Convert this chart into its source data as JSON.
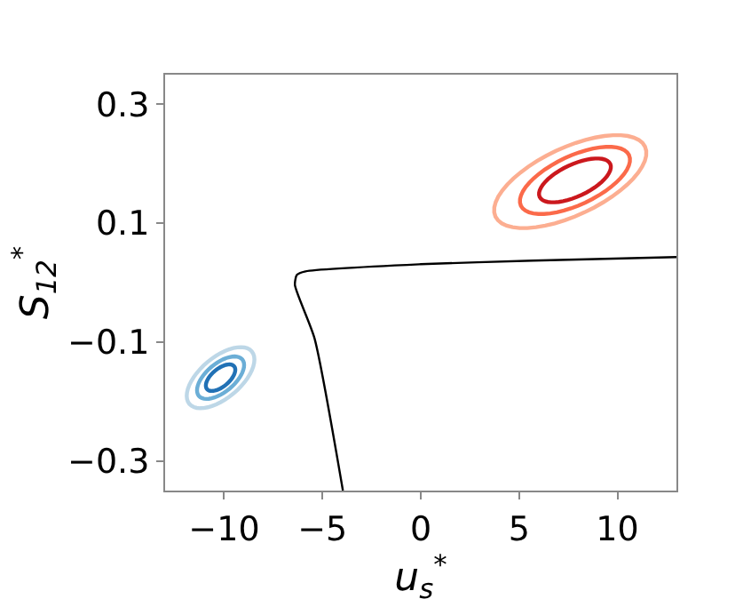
{
  "chart_data": {
    "type": "line",
    "xlabel": "u$_{s}$$^{*}$",
    "ylabel": "S$_{12}$$^{*}$",
    "xlim": [
      -13,
      13
    ],
    "ylim": [
      -0.35,
      0.35
    ],
    "xticks": [
      {
        "value": -10,
        "label": "−10"
      },
      {
        "value": -5,
        "label": "−5"
      },
      0,
      5,
      10
    ],
    "yticks": [
      {
        "value": -0.3,
        "label": "−0.3"
      },
      {
        "value": -0.1,
        "label": "−0.1"
      },
      0.1,
      0.3
    ],
    "marker": "none",
    "line_style": "solid",
    "series": [
      {
        "color": "#000000",
        "x": [
          -3.96,
          -5.4,
          -6.4,
          -6.3,
          -5.86,
          0,
          5.7,
          13
        ],
        "values": [
          -0.35,
          -0.094,
          -0.004,
          0.013,
          0.019,
          0.031,
          0.037,
          0.043
        ]
      }
    ]
  }
}
